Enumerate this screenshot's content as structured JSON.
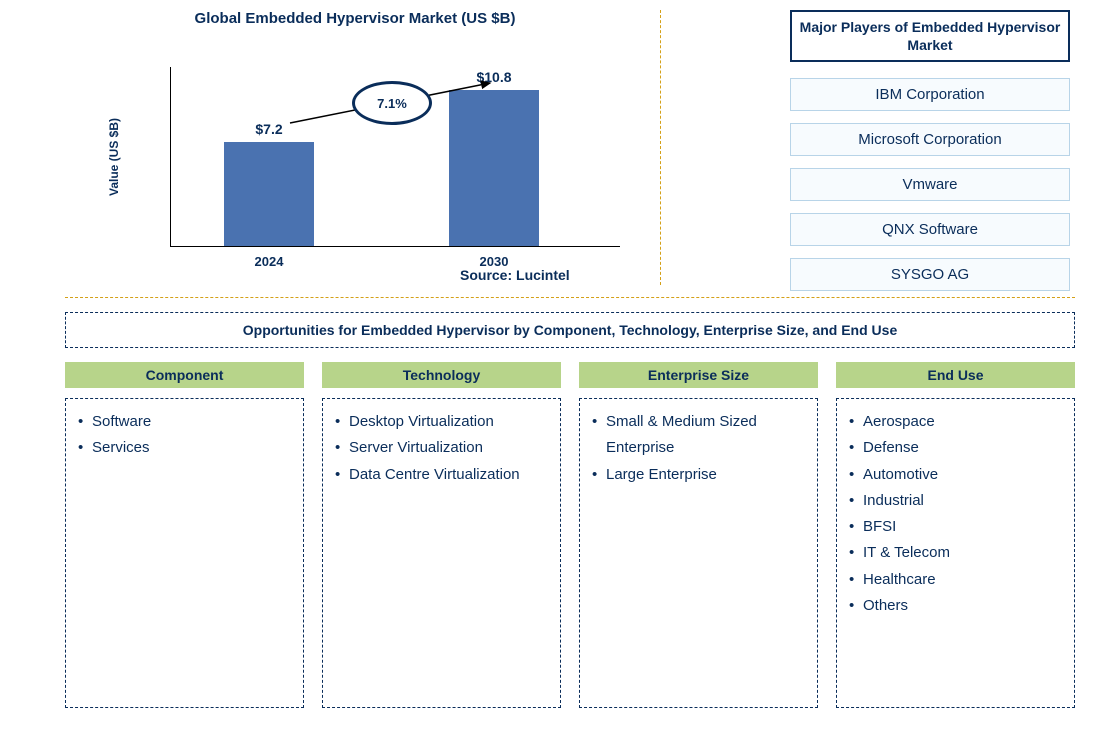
{
  "chart": {
    "title": "Global Embedded Hypervisor Market (US $B)",
    "y_axis_label": "Value (US $B)",
    "type": "bar",
    "categories": [
      "2024",
      "2030"
    ],
    "values": [
      7.2,
      10.8
    ],
    "value_labels": [
      "$7.2",
      "$10.8"
    ],
    "bar_color": "#4a72b0",
    "bar_width_pct": 20,
    "bar_positions_pct": [
      22,
      72
    ],
    "max_value": 12.5,
    "growth_label": "7.1%",
    "title_color": "#0a2d5a",
    "text_color": "#0a2d5a",
    "background_color": "#ffffff",
    "ellipse_border_color": "#0a2d5a",
    "arrow_color": "#000000"
  },
  "source_label": "Source: Lucintel",
  "players": {
    "header": "Major Players of Embedded Hypervisor Market",
    "items": [
      "IBM Corporation",
      "Microsoft Corporation",
      "Vmware",
      "QNX Software",
      "SYSGO AG"
    ],
    "header_border_color": "#0a2d5a",
    "item_border_color": "#b8d4e8",
    "item_bg_color": "#f7fbfe"
  },
  "opportunities": {
    "title": "Opportunities for Embedded Hypervisor by Component, Technology, Enterprise Size, and End Use",
    "header_bg_color": "#b7d48a",
    "border_color": "#0a2d5a",
    "categories": [
      {
        "name": "Component",
        "items": [
          "Software",
          "Services"
        ]
      },
      {
        "name": "Technology",
        "items": [
          "Desktop Virtualization",
          "Server Virtualization",
          "Data Centre Virtualization"
        ]
      },
      {
        "name": "Enterprise Size",
        "items": [
          "Small & Medium Sized Enterprise",
          "Large Enterprise"
        ]
      },
      {
        "name": "End Use",
        "items": [
          "Aerospace",
          "Defense",
          "Automotive",
          "Industrial",
          "BFSI",
          "IT & Telecom",
          "Healthcare",
          "Others"
        ]
      }
    ]
  },
  "divider_color": "#d4a017"
}
